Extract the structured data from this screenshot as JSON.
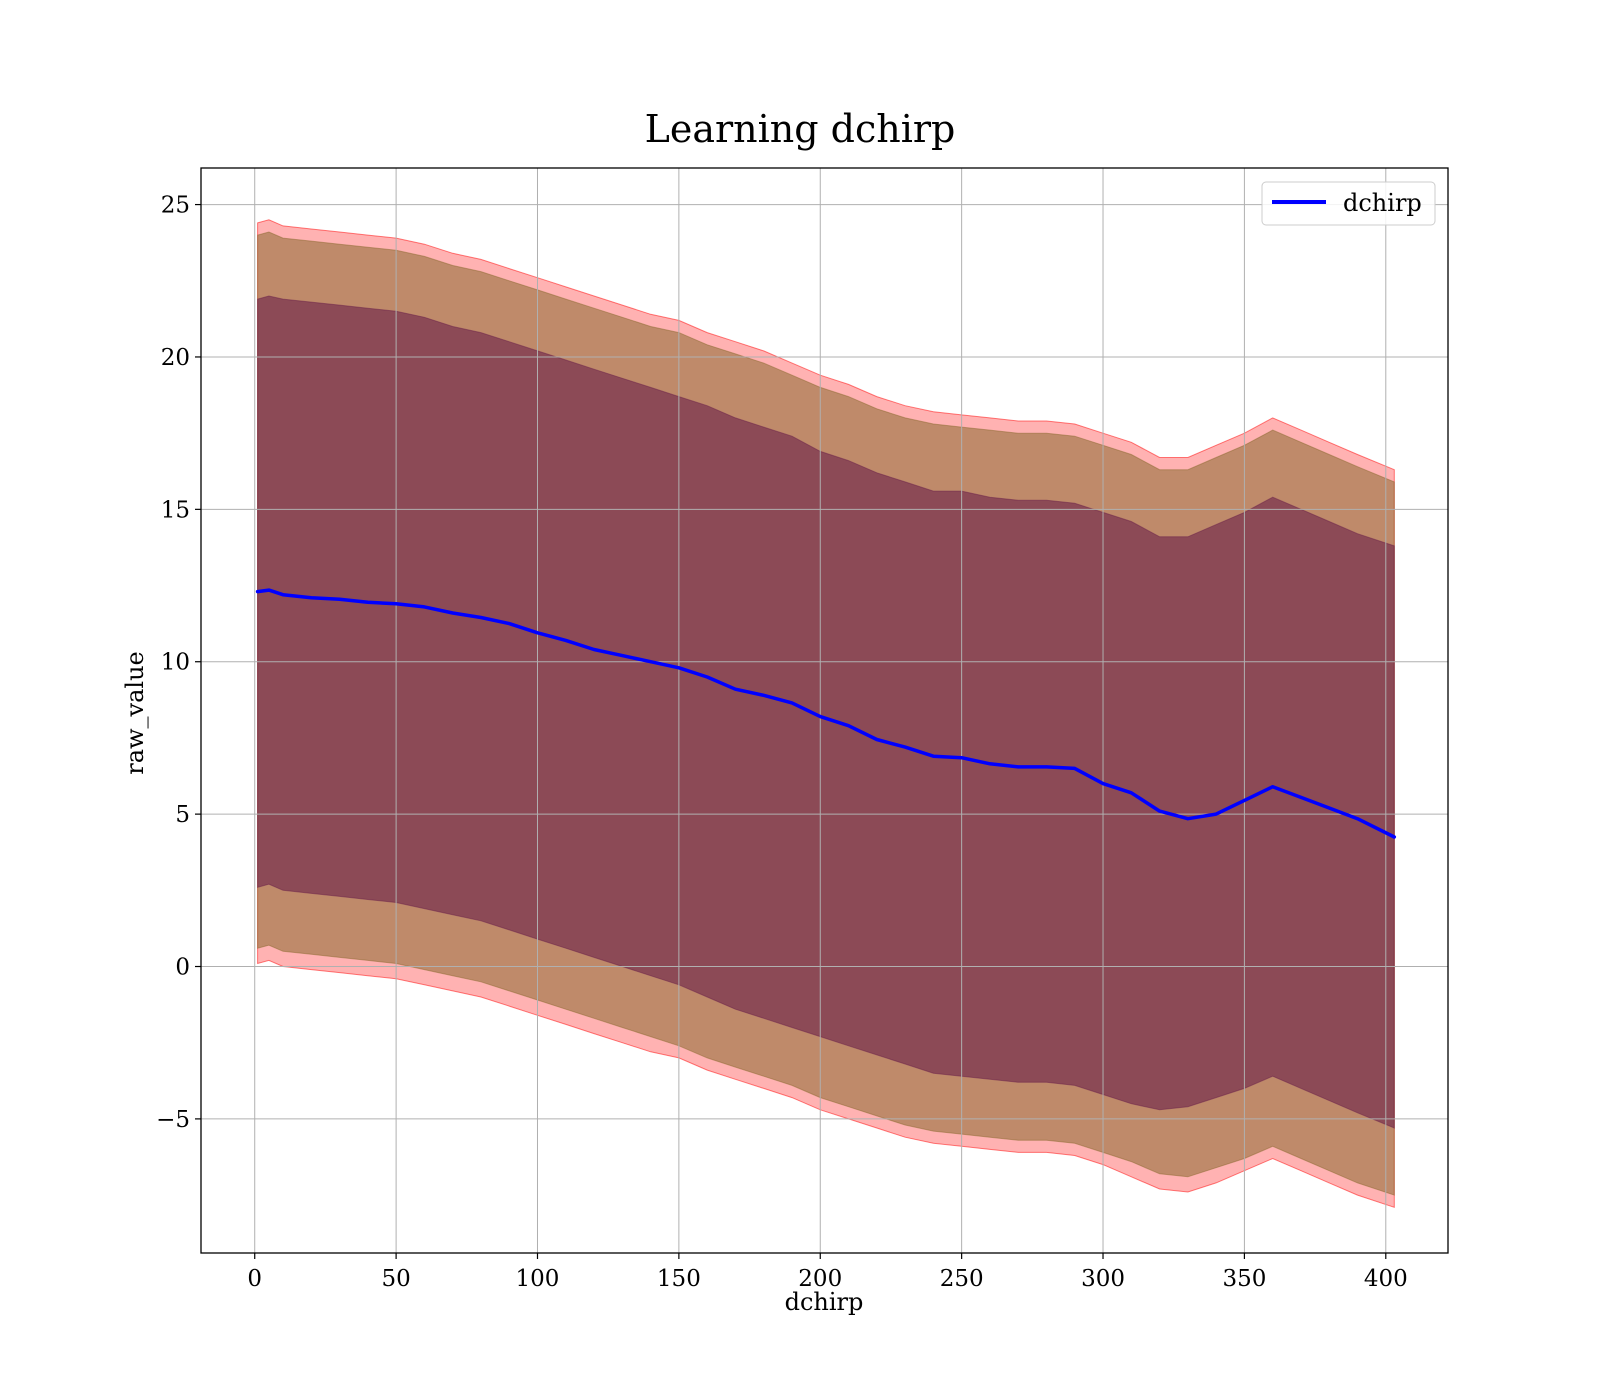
{
  "chart_data": {
    "type": "line",
    "title": "Learning dchirp",
    "xlabel": "dchirp",
    "ylabel": "raw_value",
    "xlim": [
      -19,
      422
    ],
    "ylim": [
      -9.4,
      26.2
    ],
    "xticks": [
      0,
      50,
      100,
      150,
      200,
      250,
      300,
      350,
      400
    ],
    "yticks": [
      -5,
      0,
      5,
      10,
      15,
      20,
      25
    ],
    "xtick_labels": [
      "0",
      "50",
      "100",
      "150",
      "200",
      "250",
      "300",
      "350",
      "400"
    ],
    "ytick_labels": [
      "−5",
      "0",
      "5",
      "10",
      "15",
      "20",
      "25"
    ],
    "grid": true,
    "legend": {
      "position": "top-right",
      "entries": [
        "dchirp"
      ]
    },
    "colors": {
      "line": "#0000ff",
      "band_outer": "#ff0000",
      "band_middle": "#8b6a2f",
      "band_inner": "#6a1f4a",
      "grid": "#b0b0b0"
    },
    "x": [
      1,
      5,
      10,
      20,
      30,
      40,
      50,
      60,
      70,
      80,
      90,
      100,
      110,
      120,
      130,
      140,
      150,
      160,
      170,
      180,
      190,
      200,
      210,
      220,
      230,
      240,
      250,
      260,
      270,
      280,
      290,
      300,
      310,
      320,
      330,
      340,
      350,
      360,
      370,
      380,
      390,
      403
    ],
    "series": [
      {
        "name": "dchirp",
        "values": [
          12.3,
          12.35,
          12.2,
          12.1,
          12.05,
          11.95,
          11.9,
          11.8,
          11.6,
          11.45,
          11.25,
          10.95,
          10.7,
          10.4,
          10.2,
          10.0,
          9.8,
          9.5,
          9.1,
          8.9,
          8.65,
          8.2,
          7.9,
          7.45,
          7.2,
          6.9,
          6.85,
          6.65,
          6.55,
          6.55,
          6.5,
          6.0,
          5.7,
          5.1,
          4.85,
          5.0,
          5.45,
          5.9,
          5.55,
          5.2,
          4.85,
          4.25
        ]
      },
      {
        "name": "",
        "role": "band_inner",
        "lower": [
          2.6,
          2.7,
          2.5,
          2.4,
          2.3,
          2.2,
          2.1,
          1.9,
          1.7,
          1.5,
          1.2,
          0.9,
          0.6,
          0.3,
          0.0,
          -0.3,
          -0.6,
          -1.0,
          -1.4,
          -1.7,
          -2.0,
          -2.3,
          -2.6,
          -2.9,
          -3.2,
          -3.5,
          -3.6,
          -3.7,
          -3.8,
          -3.8,
          -3.9,
          -4.2,
          -4.5,
          -4.7,
          -4.6,
          -4.3,
          -4.0,
          -3.6,
          -4.0,
          -4.4,
          -4.8,
          -5.3
        ],
        "upper": [
          21.9,
          22.0,
          21.9,
          21.8,
          21.7,
          21.6,
          21.5,
          21.3,
          21.0,
          20.8,
          20.5,
          20.2,
          19.9,
          19.6,
          19.3,
          19.0,
          18.7,
          18.4,
          18.0,
          17.7,
          17.4,
          16.9,
          16.6,
          16.2,
          15.9,
          15.6,
          15.6,
          15.4,
          15.3,
          15.3,
          15.2,
          14.9,
          14.6,
          14.1,
          14.1,
          14.5,
          14.9,
          15.4,
          15.0,
          14.6,
          14.2,
          13.8
        ]
      },
      {
        "name": "",
        "role": "band_middle",
        "lower": [
          0.6,
          0.7,
          0.5,
          0.4,
          0.3,
          0.2,
          0.1,
          -0.1,
          -0.3,
          -0.5,
          -0.8,
          -1.1,
          -1.4,
          -1.7,
          -2.0,
          -2.3,
          -2.6,
          -3.0,
          -3.3,
          -3.6,
          -3.9,
          -4.3,
          -4.6,
          -4.9,
          -5.2,
          -5.4,
          -5.5,
          -5.6,
          -5.7,
          -5.7,
          -5.8,
          -6.1,
          -6.4,
          -6.8,
          -6.9,
          -6.6,
          -6.3,
          -5.9,
          -6.3,
          -6.7,
          -7.1,
          -7.5
        ],
        "upper": [
          24.0,
          24.1,
          23.9,
          23.8,
          23.7,
          23.6,
          23.5,
          23.3,
          23.0,
          22.8,
          22.5,
          22.2,
          21.9,
          21.6,
          21.3,
          21.0,
          20.8,
          20.4,
          20.1,
          19.8,
          19.4,
          19.0,
          18.7,
          18.3,
          18.0,
          17.8,
          17.7,
          17.6,
          17.5,
          17.5,
          17.4,
          17.1,
          16.8,
          16.3,
          16.3,
          16.7,
          17.1,
          17.6,
          17.2,
          16.8,
          16.4,
          15.9
        ]
      },
      {
        "name": "",
        "role": "band_outer",
        "lower": [
          0.1,
          0.2,
          0.0,
          -0.1,
          -0.2,
          -0.3,
          -0.4,
          -0.6,
          -0.8,
          -1.0,
          -1.3,
          -1.6,
          -1.9,
          -2.2,
          -2.5,
          -2.8,
          -3.0,
          -3.4,
          -3.7,
          -4.0,
          -4.3,
          -4.7,
          -5.0,
          -5.3,
          -5.6,
          -5.8,
          -5.9,
          -6.0,
          -6.1,
          -6.1,
          -6.2,
          -6.5,
          -6.9,
          -7.3,
          -7.4,
          -7.1,
          -6.7,
          -6.3,
          -6.7,
          -7.1,
          -7.5,
          -7.9
        ],
        "upper": [
          24.4,
          24.5,
          24.3,
          24.2,
          24.1,
          24.0,
          23.9,
          23.7,
          23.4,
          23.2,
          22.9,
          22.6,
          22.3,
          22.0,
          21.7,
          21.4,
          21.2,
          20.8,
          20.5,
          20.2,
          19.8,
          19.4,
          19.1,
          18.7,
          18.4,
          18.2,
          18.1,
          18.0,
          17.9,
          17.9,
          17.8,
          17.5,
          17.2,
          16.7,
          16.7,
          17.1,
          17.5,
          18.0,
          17.6,
          17.2,
          16.8,
          16.3
        ]
      }
    ]
  }
}
